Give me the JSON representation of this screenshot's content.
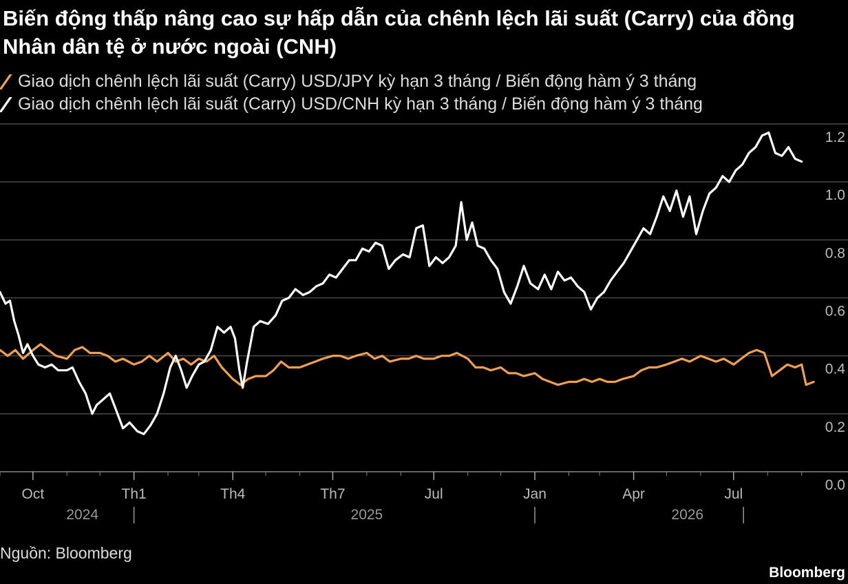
{
  "title": "Biến động thấp nâng cao sự hấp dẫn của chênh lệch lãi suất (Carry) của đồng Nhân dân tệ ở nước ngoài (CNH)",
  "source": "Nguồn: Bloomberg",
  "brand": "Bloomberg",
  "colors": {
    "usdjpy": "#f0a050",
    "usdcnh": "#ffffff",
    "grid": "#4a4a4a",
    "axis_text": "#bbbbbb"
  },
  "chart_data": {
    "type": "line",
    "ylim": [
      0,
      1.2
    ],
    "y_ticks": [
      "0.0",
      "0.2",
      "0.4",
      "0.6",
      "0.8",
      "1.0",
      "1.2"
    ],
    "x_ticks": [
      {
        "label": "Oct",
        "date": "2024-10-01"
      },
      {
        "label": "Th1",
        "date": "2025-01-01"
      },
      {
        "label": "Th4",
        "date": "2025-04-01"
      },
      {
        "label": "Th7",
        "date": "2025-07-01"
      },
      {
        "label": "Jul",
        "date": "2025-10-01"
      },
      {
        "label": "Jan",
        "date": "2026-01-01"
      },
      {
        "label": "Apr",
        "date": "2026-04-01"
      },
      {
        "label": "Jul",
        "date": "2026-07-01"
      }
    ],
    "years": [
      {
        "label": "2024",
        "date": "2024-11-15"
      },
      {
        "label": "2025",
        "date": "2025-08-01"
      },
      {
        "label": "2026",
        "date": "2026-05-20"
      }
    ],
    "year_separators": [
      "2025-01-01",
      "2026-01-01",
      "2026-07-10"
    ],
    "x_range": [
      "2024-09-01",
      "2026-09-20"
    ],
    "series": [
      {
        "name": "Giao dịch chênh lệch lãi suất (Carry) USD/JPY kỳ hạn 3 tháng / Biến động hàm ý 3 tháng",
        "key": "usdjpy",
        "points": [
          [
            "2024-09-01",
            0.42
          ],
          [
            "2024-09-08",
            0.4
          ],
          [
            "2024-09-15",
            0.42
          ],
          [
            "2024-09-22",
            0.39
          ],
          [
            "2024-10-01",
            0.42
          ],
          [
            "2024-10-08",
            0.44
          ],
          [
            "2024-10-15",
            0.42
          ],
          [
            "2024-10-22",
            0.4
          ],
          [
            "2024-11-01",
            0.39
          ],
          [
            "2024-11-08",
            0.42
          ],
          [
            "2024-11-15",
            0.43
          ],
          [
            "2024-11-22",
            0.41
          ],
          [
            "2024-12-01",
            0.41
          ],
          [
            "2024-12-08",
            0.4
          ],
          [
            "2024-12-15",
            0.38
          ],
          [
            "2024-12-22",
            0.39
          ],
          [
            "2025-01-01",
            0.37
          ],
          [
            "2025-01-08",
            0.38
          ],
          [
            "2025-01-15",
            0.4
          ],
          [
            "2025-01-22",
            0.38
          ],
          [
            "2025-02-01",
            0.41
          ],
          [
            "2025-02-08",
            0.38
          ],
          [
            "2025-02-15",
            0.39
          ],
          [
            "2025-02-22",
            0.37
          ],
          [
            "2025-03-01",
            0.39
          ],
          [
            "2025-03-08",
            0.38
          ],
          [
            "2025-03-15",
            0.4
          ],
          [
            "2025-03-22",
            0.36
          ],
          [
            "2025-04-01",
            0.32
          ],
          [
            "2025-04-08",
            0.3
          ],
          [
            "2025-04-15",
            0.32
          ],
          [
            "2025-04-22",
            0.33
          ],
          [
            "2025-05-01",
            0.33
          ],
          [
            "2025-05-08",
            0.35
          ],
          [
            "2025-05-15",
            0.38
          ],
          [
            "2025-05-22",
            0.36
          ],
          [
            "2025-06-01",
            0.36
          ],
          [
            "2025-06-08",
            0.37
          ],
          [
            "2025-06-15",
            0.38
          ],
          [
            "2025-06-22",
            0.39
          ],
          [
            "2025-07-01",
            0.4
          ],
          [
            "2025-07-08",
            0.4
          ],
          [
            "2025-07-15",
            0.39
          ],
          [
            "2025-07-22",
            0.4
          ],
          [
            "2025-08-01",
            0.41
          ],
          [
            "2025-08-08",
            0.39
          ],
          [
            "2025-08-15",
            0.4
          ],
          [
            "2025-08-22",
            0.38
          ],
          [
            "2025-09-01",
            0.39
          ],
          [
            "2025-09-08",
            0.39
          ],
          [
            "2025-09-15",
            0.4
          ],
          [
            "2025-09-22",
            0.39
          ],
          [
            "2025-10-01",
            0.39
          ],
          [
            "2025-10-08",
            0.4
          ],
          [
            "2025-10-15",
            0.4
          ],
          [
            "2025-10-22",
            0.41
          ],
          [
            "2025-11-01",
            0.39
          ],
          [
            "2025-11-08",
            0.36
          ],
          [
            "2025-11-15",
            0.36
          ],
          [
            "2025-11-22",
            0.35
          ],
          [
            "2025-12-01",
            0.36
          ],
          [
            "2025-12-08",
            0.34
          ],
          [
            "2025-12-15",
            0.34
          ],
          [
            "2025-12-22",
            0.33
          ],
          [
            "2026-01-01",
            0.34
          ],
          [
            "2026-01-08",
            0.32
          ],
          [
            "2026-01-15",
            0.31
          ],
          [
            "2026-01-22",
            0.3
          ],
          [
            "2026-02-01",
            0.31
          ],
          [
            "2026-02-08",
            0.31
          ],
          [
            "2026-02-15",
            0.32
          ],
          [
            "2026-02-22",
            0.31
          ],
          [
            "2026-03-01",
            0.32
          ],
          [
            "2026-03-08",
            0.31
          ],
          [
            "2026-03-15",
            0.31
          ],
          [
            "2026-03-22",
            0.32
          ],
          [
            "2026-04-01",
            0.33
          ],
          [
            "2026-04-08",
            0.35
          ],
          [
            "2026-04-15",
            0.36
          ],
          [
            "2026-04-22",
            0.36
          ],
          [
            "2026-05-01",
            0.37
          ],
          [
            "2026-05-08",
            0.38
          ],
          [
            "2026-05-15",
            0.39
          ],
          [
            "2026-05-22",
            0.38
          ],
          [
            "2026-06-01",
            0.4
          ],
          [
            "2026-06-08",
            0.39
          ],
          [
            "2026-06-15",
            0.38
          ],
          [
            "2026-06-22",
            0.39
          ],
          [
            "2026-07-01",
            0.37
          ],
          [
            "2026-07-08",
            0.39
          ],
          [
            "2026-07-15",
            0.41
          ],
          [
            "2026-07-22",
            0.42
          ],
          [
            "2026-07-29",
            0.41
          ],
          [
            "2026-08-05",
            0.33
          ],
          [
            "2026-08-12",
            0.35
          ],
          [
            "2026-08-19",
            0.37
          ],
          [
            "2026-08-26",
            0.36
          ],
          [
            "2026-09-01",
            0.37
          ],
          [
            "2026-09-05",
            0.3
          ],
          [
            "2026-09-12",
            0.31
          ]
        ]
      },
      {
        "name": "Giao dịch chênh lệch lãi suất (Carry) USD/CNH kỳ hạn 3 tháng / Biến động hàm ý 3 tháng",
        "key": "usdcnh",
        "points": [
          [
            "2024-09-01",
            0.62
          ],
          [
            "2024-09-06",
            0.58
          ],
          [
            "2024-09-10",
            0.59
          ],
          [
            "2024-09-14",
            0.52
          ],
          [
            "2024-09-18",
            0.47
          ],
          [
            "2024-09-22",
            0.41
          ],
          [
            "2024-09-26",
            0.44
          ],
          [
            "2024-10-01",
            0.4
          ],
          [
            "2024-10-06",
            0.37
          ],
          [
            "2024-10-12",
            0.36
          ],
          [
            "2024-10-18",
            0.37
          ],
          [
            "2024-10-24",
            0.35
          ],
          [
            "2024-11-01",
            0.35
          ],
          [
            "2024-11-06",
            0.36
          ],
          [
            "2024-11-12",
            0.31
          ],
          [
            "2024-11-18",
            0.27
          ],
          [
            "2024-11-24",
            0.2
          ],
          [
            "2024-11-28",
            0.23
          ],
          [
            "2024-12-04",
            0.25
          ],
          [
            "2024-12-10",
            0.27
          ],
          [
            "2024-12-16",
            0.21
          ],
          [
            "2024-12-22",
            0.15
          ],
          [
            "2024-12-28",
            0.17
          ],
          [
            "2025-01-04",
            0.14
          ],
          [
            "2025-01-10",
            0.13
          ],
          [
            "2025-01-16",
            0.16
          ],
          [
            "2025-01-22",
            0.2
          ],
          [
            "2025-01-28",
            0.27
          ],
          [
            "2025-02-03",
            0.36
          ],
          [
            "2025-02-08",
            0.4
          ],
          [
            "2025-02-13",
            0.35
          ],
          [
            "2025-02-18",
            0.29
          ],
          [
            "2025-02-23",
            0.33
          ],
          [
            "2025-03-01",
            0.37
          ],
          [
            "2025-03-06",
            0.38
          ],
          [
            "2025-03-12",
            0.42
          ],
          [
            "2025-03-18",
            0.5
          ],
          [
            "2025-03-24",
            0.48
          ],
          [
            "2025-03-30",
            0.5
          ],
          [
            "2025-04-03",
            0.46
          ],
          [
            "2025-04-07",
            0.35
          ],
          [
            "2025-04-10",
            0.29
          ],
          [
            "2025-04-14",
            0.38
          ],
          [
            "2025-04-20",
            0.5
          ],
          [
            "2025-04-26",
            0.52
          ],
          [
            "2025-05-03",
            0.51
          ],
          [
            "2025-05-10",
            0.54
          ],
          [
            "2025-05-16",
            0.59
          ],
          [
            "2025-05-22",
            0.6
          ],
          [
            "2025-05-28",
            0.63
          ],
          [
            "2025-06-04",
            0.61
          ],
          [
            "2025-06-10",
            0.62
          ],
          [
            "2025-06-16",
            0.64
          ],
          [
            "2025-06-22",
            0.65
          ],
          [
            "2025-06-28",
            0.68
          ],
          [
            "2025-07-04",
            0.67
          ],
          [
            "2025-07-10",
            0.7
          ],
          [
            "2025-07-16",
            0.73
          ],
          [
            "2025-07-22",
            0.73
          ],
          [
            "2025-07-28",
            0.77
          ],
          [
            "2025-08-03",
            0.76
          ],
          [
            "2025-08-09",
            0.79
          ],
          [
            "2025-08-15",
            0.78
          ],
          [
            "2025-08-21",
            0.7
          ],
          [
            "2025-08-27",
            0.73
          ],
          [
            "2025-09-03",
            0.75
          ],
          [
            "2025-09-09",
            0.74
          ],
          [
            "2025-09-15",
            0.84
          ],
          [
            "2025-09-21",
            0.85
          ],
          [
            "2025-09-27",
            0.71
          ],
          [
            "2025-10-03",
            0.74
          ],
          [
            "2025-10-09",
            0.72
          ],
          [
            "2025-10-15",
            0.74
          ],
          [
            "2025-10-21",
            0.78
          ],
          [
            "2025-10-26",
            0.93
          ],
          [
            "2025-10-31",
            0.8
          ],
          [
            "2025-11-05",
            0.86
          ],
          [
            "2025-11-10",
            0.78
          ],
          [
            "2025-11-16",
            0.77
          ],
          [
            "2025-11-22",
            0.73
          ],
          [
            "2025-11-28",
            0.7
          ],
          [
            "2025-12-04",
            0.62
          ],
          [
            "2025-12-10",
            0.58
          ],
          [
            "2025-12-16",
            0.64
          ],
          [
            "2025-12-22",
            0.71
          ],
          [
            "2025-12-28",
            0.65
          ],
          [
            "2026-01-04",
            0.63
          ],
          [
            "2026-01-10",
            0.68
          ],
          [
            "2026-01-16",
            0.63
          ],
          [
            "2026-01-22",
            0.69
          ],
          [
            "2026-01-28",
            0.66
          ],
          [
            "2026-02-03",
            0.67
          ],
          [
            "2026-02-09",
            0.64
          ],
          [
            "2026-02-15",
            0.62
          ],
          [
            "2026-02-21",
            0.56
          ],
          [
            "2026-02-27",
            0.6
          ],
          [
            "2026-03-05",
            0.62
          ],
          [
            "2026-03-11",
            0.66
          ],
          [
            "2026-03-17",
            0.69
          ],
          [
            "2026-03-23",
            0.72
          ],
          [
            "2026-03-29",
            0.76
          ],
          [
            "2026-04-04",
            0.8
          ],
          [
            "2026-04-10",
            0.84
          ],
          [
            "2026-04-16",
            0.82
          ],
          [
            "2026-04-22",
            0.88
          ],
          [
            "2026-04-28",
            0.95
          ],
          [
            "2026-05-04",
            0.9
          ],
          [
            "2026-05-10",
            0.97
          ],
          [
            "2026-05-16",
            0.88
          ],
          [
            "2026-05-22",
            0.95
          ],
          [
            "2026-05-28",
            0.82
          ],
          [
            "2026-06-03",
            0.9
          ],
          [
            "2026-06-09",
            0.96
          ],
          [
            "2026-06-15",
            0.98
          ],
          [
            "2026-06-21",
            1.02
          ],
          [
            "2026-06-27",
            1.0
          ],
          [
            "2026-07-03",
            1.04
          ],
          [
            "2026-07-09",
            1.06
          ],
          [
            "2026-07-15",
            1.1
          ],
          [
            "2026-07-21",
            1.12
          ],
          [
            "2026-07-27",
            1.16
          ],
          [
            "2026-08-02",
            1.17
          ],
          [
            "2026-08-08",
            1.1
          ],
          [
            "2026-08-14",
            1.09
          ],
          [
            "2026-08-20",
            1.12
          ],
          [
            "2026-08-26",
            1.08
          ],
          [
            "2026-09-01",
            1.07
          ]
        ]
      }
    ]
  }
}
